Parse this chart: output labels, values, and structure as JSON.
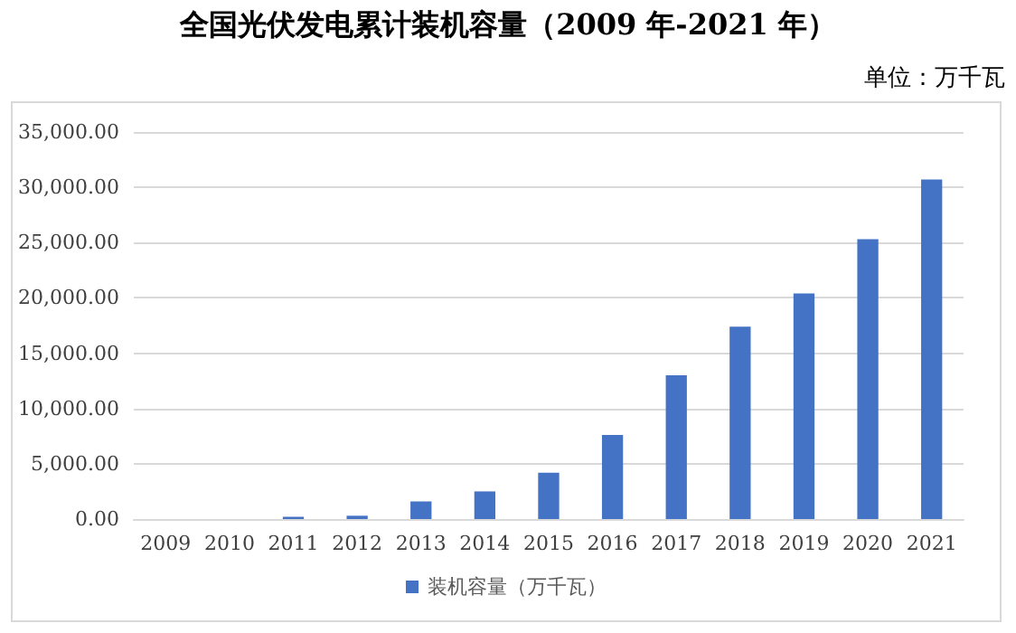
{
  "chart_data": {
    "type": "bar",
    "title": "全国光伏发电累计装机容量（2009 年-2021 年）",
    "annotations": [
      "单位：万千瓦"
    ],
    "categories": [
      "2009",
      "2010",
      "2011",
      "2012",
      "2013",
      "2014",
      "2015",
      "2016",
      "2017",
      "2018",
      "2019",
      "2020",
      "2021"
    ],
    "series": [
      {
        "name": "装机容量（万千瓦）",
        "color": "#4472c4",
        "values": [
          0,
          0,
          200,
          300,
          1600,
          2500,
          4200,
          7600,
          13000,
          17400,
          20400,
          25300,
          30700
        ]
      }
    ],
    "ylim": [
      0,
      35000
    ],
    "yticks": [
      {
        "value": 0,
        "label": "0.00"
      },
      {
        "value": 5000,
        "label": "5,000.00"
      },
      {
        "value": 10000,
        "label": "10,000.00"
      },
      {
        "value": 15000,
        "label": "15,000.00"
      },
      {
        "value": 20000,
        "label": "20,000.00"
      },
      {
        "value": 25000,
        "label": "25,000.00"
      },
      {
        "value": 30000,
        "label": "30,000.00"
      },
      {
        "value": 35000,
        "label": "35,000.00"
      }
    ],
    "grid": "y",
    "legend": "bottom"
  }
}
